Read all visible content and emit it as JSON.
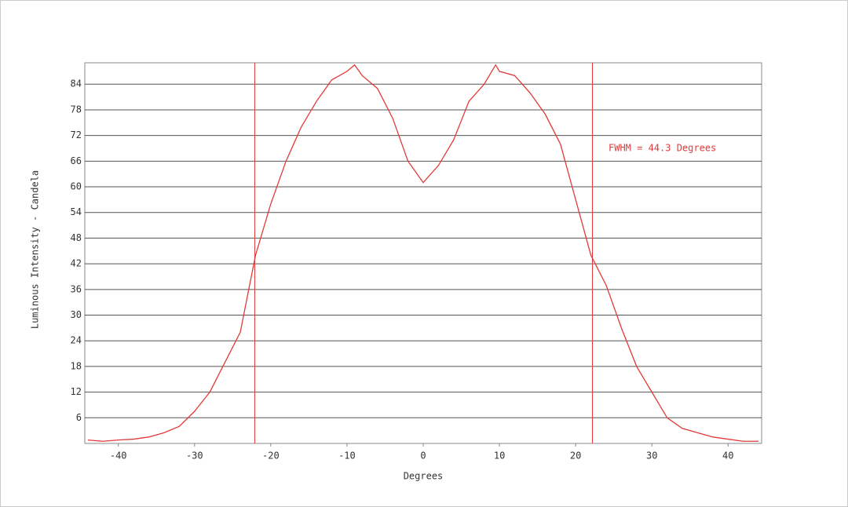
{
  "chart_data": {
    "type": "line",
    "x_label": "Degrees",
    "y_label": "Luminous Intensity - Candela",
    "annotation": "FWHM = 44.3 Degrees",
    "vlines": [
      -22.1,
      22.2
    ],
    "xlim": [
      -44.4,
      44.4
    ],
    "ylim": [
      0,
      89
    ],
    "xticks": [
      -40,
      -30,
      -20,
      -10,
      0,
      10,
      20,
      30,
      40
    ],
    "yticks": [
      6,
      12,
      18,
      24,
      30,
      36,
      42,
      48,
      54,
      60,
      66,
      72,
      78,
      84
    ],
    "grid": true,
    "color": "#e23a3a",
    "x": [
      -44,
      -42,
      -40,
      -38,
      -36,
      -34,
      -32,
      -30,
      -28,
      -26,
      -24,
      -22,
      -20,
      -18,
      -16,
      -14,
      -12,
      -10,
      -9,
      -8,
      -6,
      -4,
      -2,
      0,
      2,
      4,
      6,
      8,
      9.5,
      10,
      12,
      14,
      16,
      18,
      20,
      22,
      24,
      26,
      28,
      30,
      32,
      34,
      36,
      38,
      40,
      42,
      44
    ],
    "values": [
      0.8,
      0.5,
      0.8,
      1,
      1.5,
      2.5,
      4,
      7.5,
      12,
      19,
      26,
      44,
      56,
      66,
      74,
      80,
      85,
      87,
      88.5,
      86,
      83,
      76,
      66,
      61,
      65,
      71,
      80,
      84,
      88.5,
      87,
      86,
      82,
      77,
      70,
      57,
      44,
      37,
      27,
      18,
      12,
      6,
      3.5,
      2.5,
      1.5,
      1,
      0.5,
      0.5
    ]
  }
}
